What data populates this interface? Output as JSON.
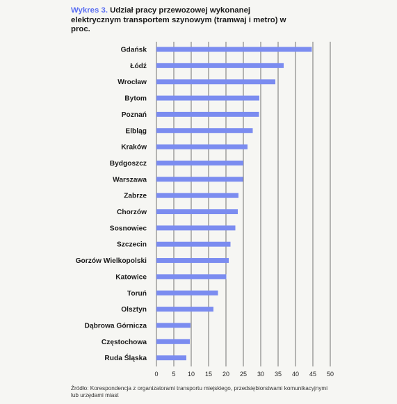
{
  "title": {
    "prefix": "Wykres 3.",
    "text": "Udział pracy przewozowej wykonanej elektrycznym transportem szynowym (tramwaj i metro) w proc."
  },
  "source": "Źródło: Korespondencja z organizatorami transportu miejskiego, przedsiębiorstwami komunikacyjnymi lub urzędami miast",
  "colors": {
    "bar": "#7b8cf0",
    "grid": "#1a1a1a",
    "accent": "#5a6ef2"
  },
  "chart_data": {
    "type": "bar",
    "orientation": "horizontal",
    "categories": [
      "Gdańsk",
      "Łódź",
      "Wrocław",
      "Bytom",
      "Poznań",
      "Elbląg",
      "Kraków",
      "Bydgoszcz",
      "Warszawa",
      "Zabrze",
      "Chorzów",
      "Sosnowiec",
      "Szczecin",
      "Gorzów Wielkopolski",
      "Katowice",
      "Toruń",
      "Olsztyn",
      "Dąbrowa Górnicza",
      "Częstochowa",
      "Ruda Śląska"
    ],
    "values": [
      44.7,
      36.6,
      34.2,
      29.6,
      29.5,
      27.7,
      26.2,
      25.0,
      24.9,
      23.6,
      23.4,
      22.7,
      21.3,
      20.8,
      20.1,
      17.7,
      16.4,
      9.8,
      9.6,
      8.6
    ],
    "xlim": [
      0,
      50
    ],
    "xticks": [
      0,
      5,
      10,
      15,
      20,
      25,
      30,
      35,
      40,
      45,
      50
    ],
    "grid": true
  }
}
